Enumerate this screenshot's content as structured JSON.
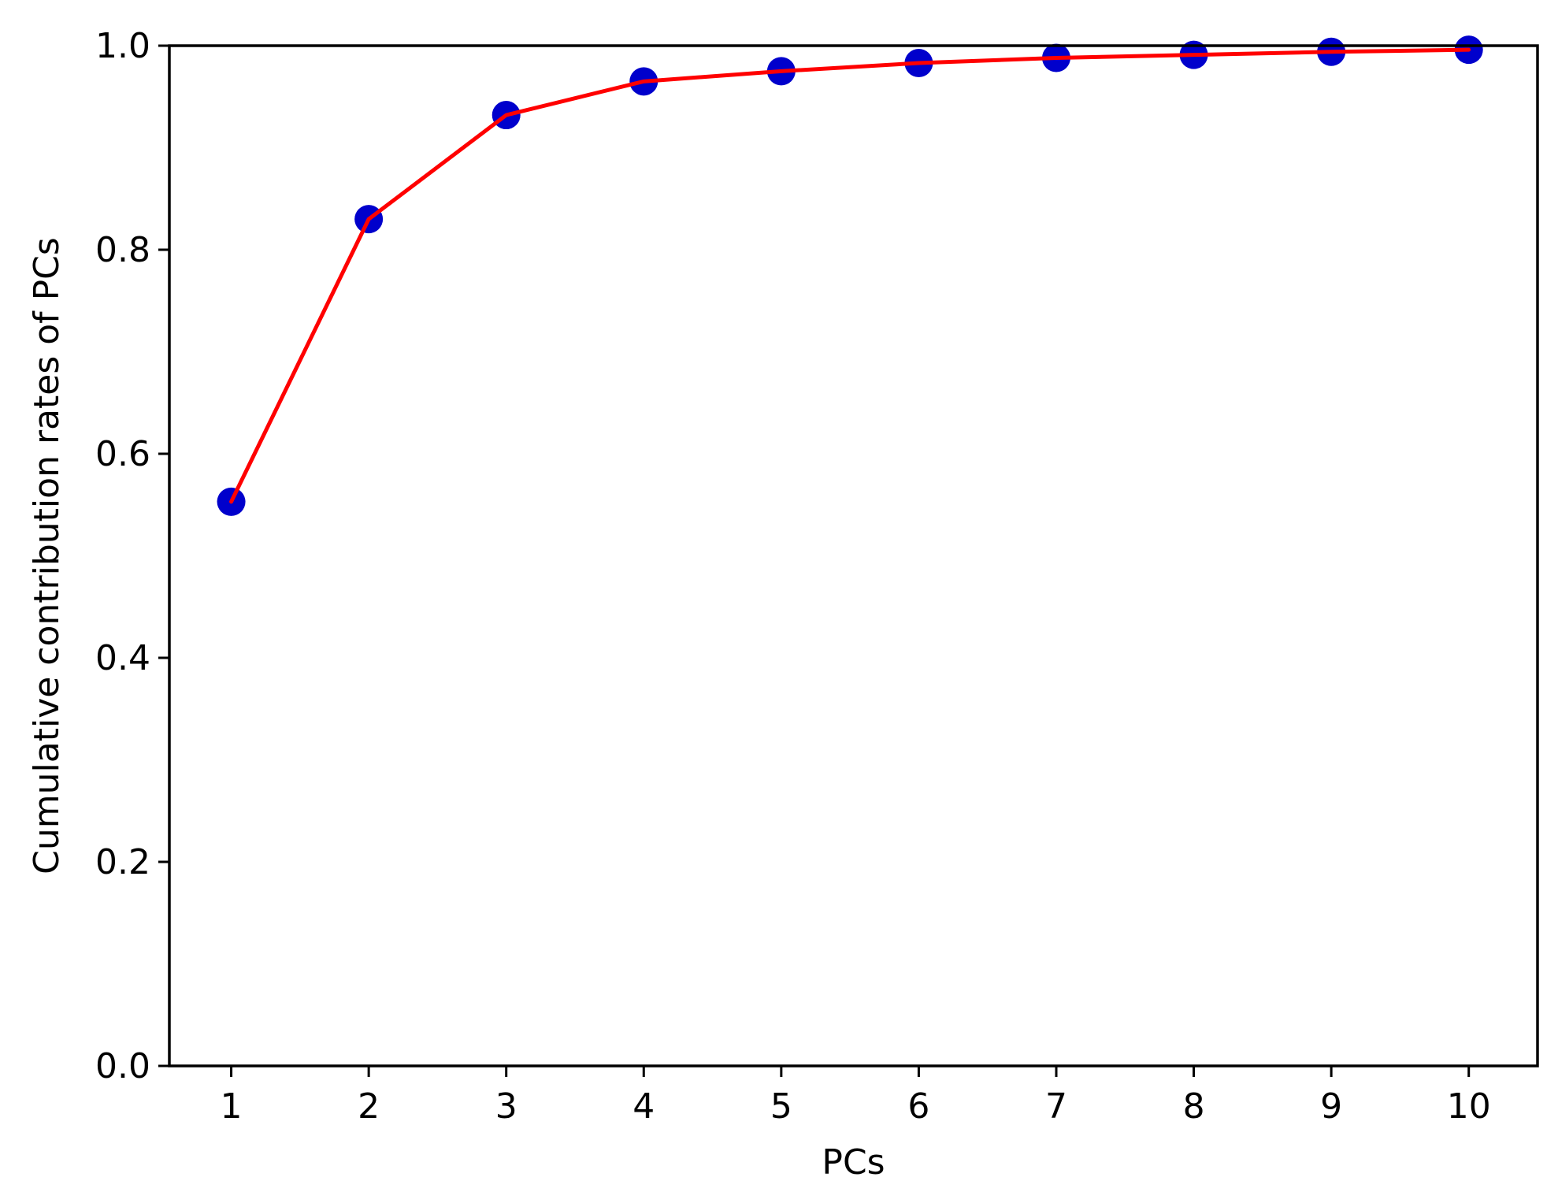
{
  "chart_data": {
    "type": "line",
    "title": "",
    "xlabel": "PCs",
    "ylabel": "Cumulative contribution rates of PCs",
    "x": [
      1,
      2,
      3,
      4,
      5,
      6,
      7,
      8,
      9,
      10
    ],
    "series": [
      {
        "values": [
          0.553,
          0.83,
          0.932,
          0.965,
          0.975,
          0.983,
          0.988,
          0.991,
          0.994,
          0.996
        ],
        "line_color": "#ff0000",
        "marker_color": "#0000cc"
      }
    ],
    "xticks": [
      "1",
      "2",
      "3",
      "4",
      "5",
      "6",
      "7",
      "8",
      "9",
      "10"
    ],
    "yticks": [
      "0.0",
      "0.2",
      "0.4",
      "0.6",
      "0.8",
      "1.0"
    ],
    "xlim": [
      0.55,
      10.5
    ],
    "ylim": [
      0.0,
      1.0
    ],
    "grid": false,
    "legend": "none"
  }
}
